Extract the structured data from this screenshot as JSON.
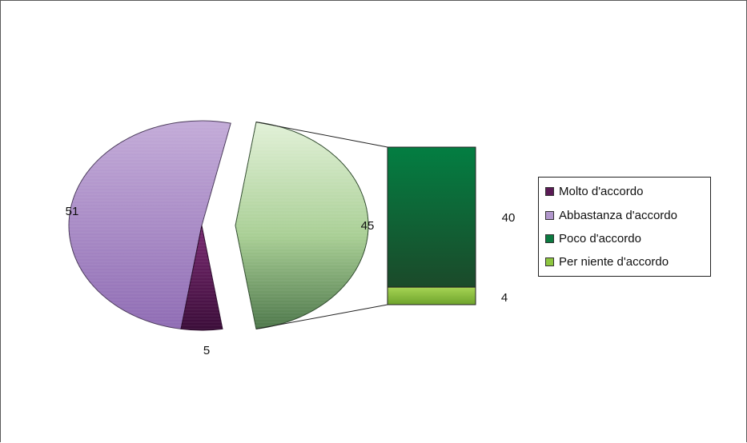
{
  "chart_data": {
    "type": "pie",
    "subtype": "pie-of-bar",
    "title": "",
    "slices": [
      {
        "label": "Molto d'accordo",
        "value": 5,
        "color": "#5a1a55"
      },
      {
        "label": "Abbastanza d'accordo",
        "value": 51,
        "color": "#b197cc"
      },
      {
        "label": "Poco d'accordo",
        "value": 40,
        "color": "#0b7a40"
      },
      {
        "label": "Per niente d'accordo",
        "value": 4,
        "color": "#8dc63f"
      }
    ],
    "combined_slice": {
      "value": 45,
      "color": "#c9e4bb",
      "dark_color": "#3f6b3b"
    },
    "legend_placement": "right",
    "data_labels": [
      "5",
      "51",
      "45",
      "40",
      "4"
    ]
  },
  "legend": {
    "items": [
      {
        "label": "Molto d'accordo",
        "color": "#5a1a55"
      },
      {
        "label": "Abbastanza d'accordo",
        "color": "#b197cc"
      },
      {
        "label": "Poco d'accordo",
        "color": "#0b7a40"
      },
      {
        "label": "Per niente d'accordo",
        "color": "#8dc63f"
      }
    ]
  }
}
